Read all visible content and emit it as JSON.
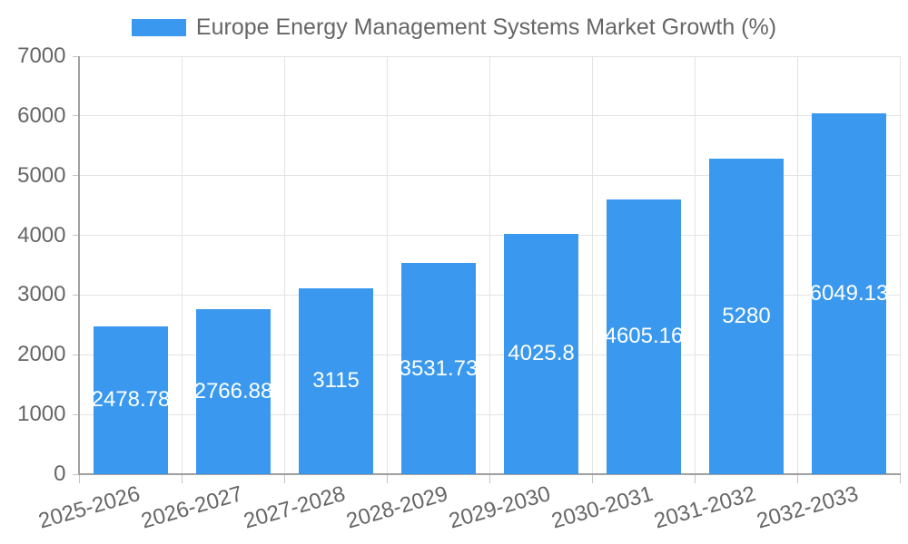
{
  "chart_data": {
    "type": "bar",
    "title": "Europe Energy Management Systems Market Growth (%)",
    "legend": {
      "position": "top",
      "items": [
        "Europe Energy Management Systems Market Growth (%)"
      ]
    },
    "categories": [
      "2025-2026",
      "2026-2027",
      "2027-2028",
      "2028-2029",
      "2029-2030",
      "2030-2031",
      "2031-2032",
      "2032-2033"
    ],
    "values": [
      2478.78,
      2766.88,
      3115,
      3531.73,
      4025.8,
      4605.16,
      5280,
      6049.13
    ],
    "value_labels": [
      "2478.78",
      "2766.88",
      "3115",
      "3531.73",
      "4025.8",
      "4605.16",
      "5280",
      "6049.13"
    ],
    "xlabel": "",
    "ylabel": "",
    "ylim": [
      0,
      7000
    ],
    "ytick_step": 1000,
    "ytick_labels": [
      "0",
      "1000",
      "2000",
      "3000",
      "4000",
      "5000",
      "6000",
      "7000"
    ],
    "grid": true,
    "colors": {
      "bar": "#3a99ee",
      "bar_value_text": "#ffffff",
      "axis_text": "#666666",
      "grid_line": "#e3e3e3",
      "axis_line": "#a0a0a0",
      "tick_mark": "#c4c4c4",
      "background": "#ffffff"
    }
  }
}
